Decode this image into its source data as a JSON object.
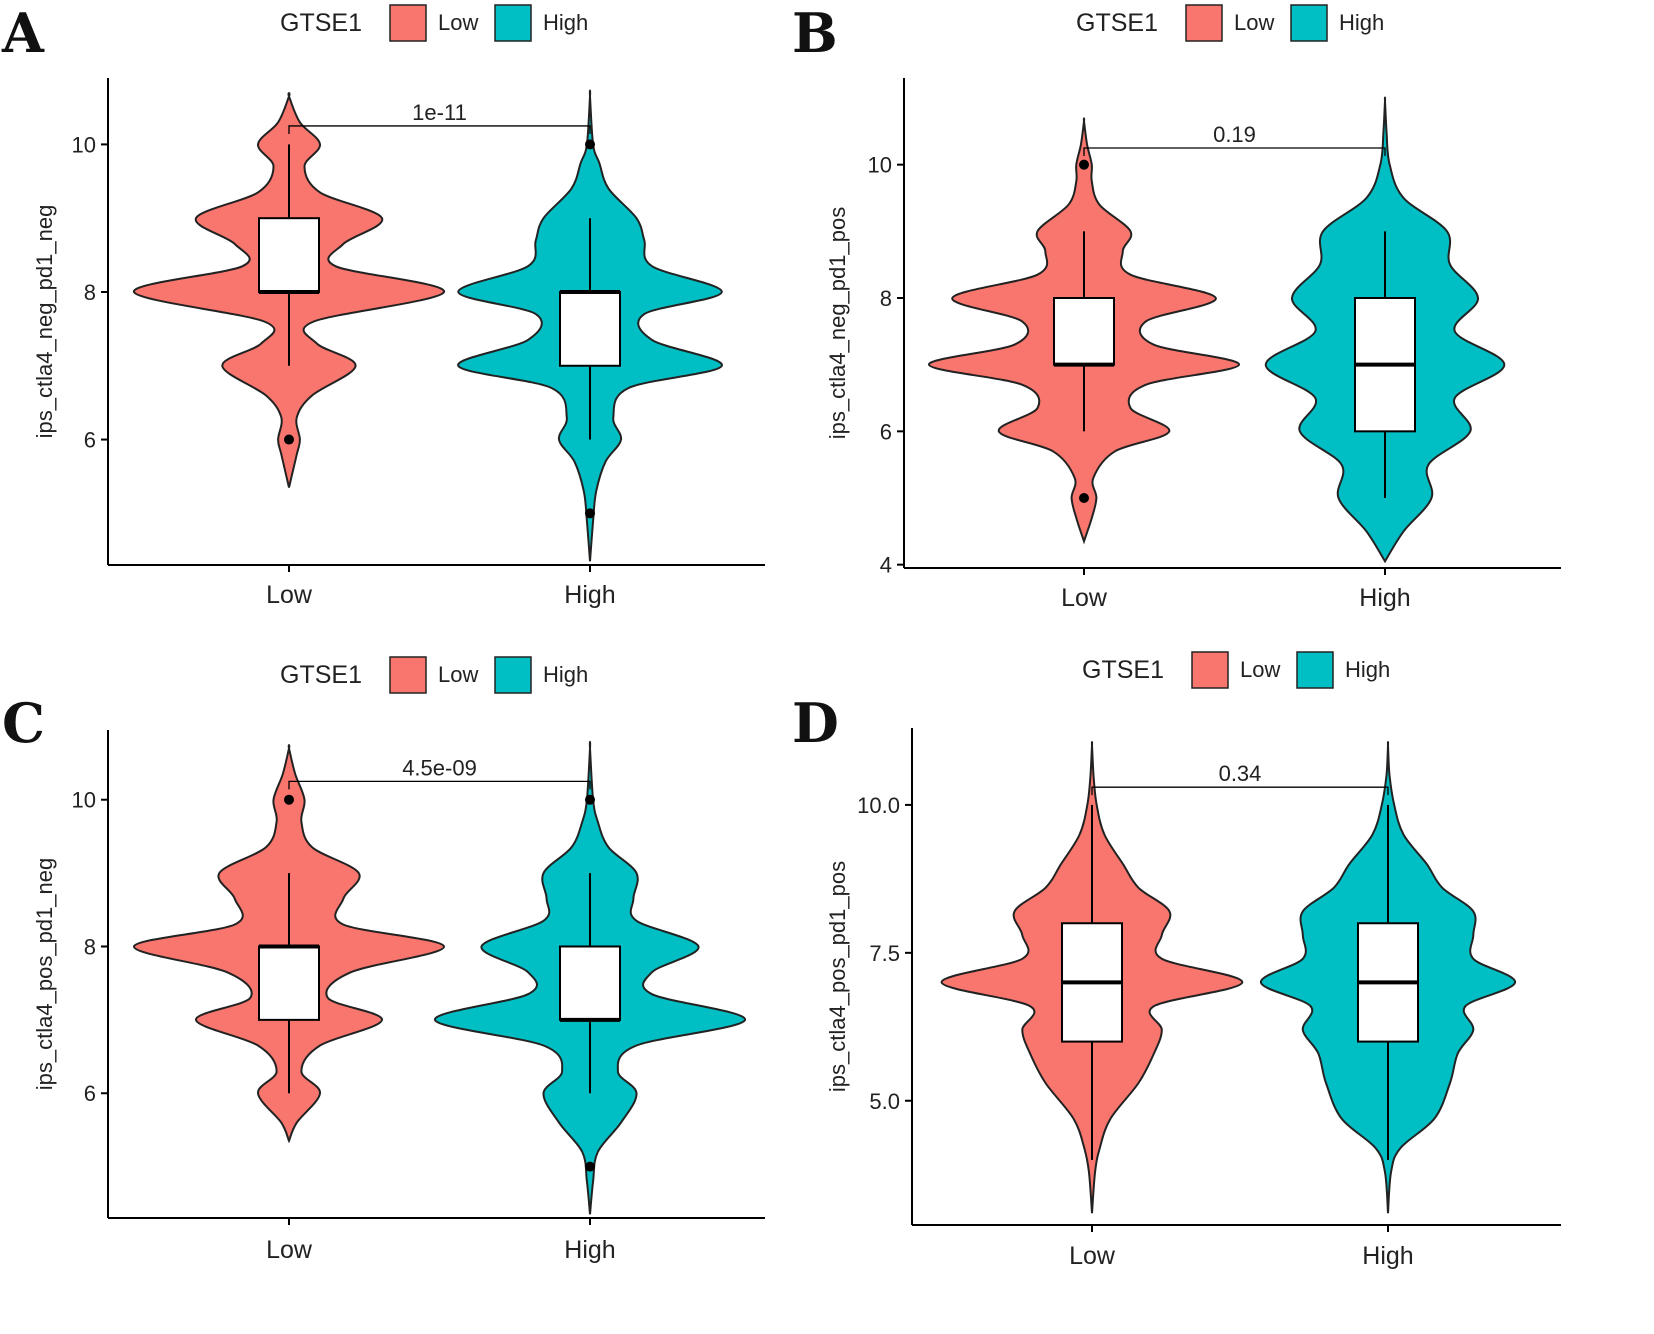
{
  "figure": {
    "legend_title": "GTSE1"
  },
  "colors": {
    "Low": "#F8766D",
    "High": "#00BFC4"
  },
  "chart_data": [
    {
      "panel": "A",
      "type": "violin",
      "legend_title": "GTSE1",
      "legend": [
        "Low",
        "High"
      ],
      "categories": [
        "Low",
        "High"
      ],
      "ylabel": "ips_ctla4_neg_pd1_neg",
      "xlabel": "",
      "ylim": [
        4.3,
        10.9
      ],
      "yticks": [
        6,
        8,
        10
      ],
      "yticklabels": [
        "6",
        "8",
        "10"
      ],
      "pvalue": "1e-11",
      "bracket_y": 10.25,
      "groups": [
        {
          "name": "Low",
          "box": {
            "q1": 8,
            "median": 8,
            "q3": 9,
            "whisker_low": 7,
            "whisker_high": 10
          },
          "outliers": [
            6
          ],
          "range": [
            5.35,
            10.65
          ],
          "density": [
            [
              5.35,
              0
            ],
            [
              5.8,
              0.05
            ],
            [
              6.0,
              0.07
            ],
            [
              6.3,
              0.05
            ],
            [
              6.6,
              0.15
            ],
            [
              7.0,
              0.43
            ],
            [
              7.3,
              0.18
            ],
            [
              7.6,
              0.16
            ],
            [
              8.0,
              1.0
            ],
            [
              8.35,
              0.3
            ],
            [
              8.65,
              0.35
            ],
            [
              9.0,
              0.6
            ],
            [
              9.35,
              0.2
            ],
            [
              9.7,
              0.1
            ],
            [
              10.0,
              0.2
            ],
            [
              10.3,
              0.07
            ],
            [
              10.65,
              0
            ]
          ]
        },
        {
          "name": "High",
          "box": {
            "q1": 7,
            "median": 8,
            "q3": 8,
            "whisker_low": 6,
            "whisker_high": 9
          },
          "outliers": [
            5,
            10
          ],
          "range": [
            4.35,
            10.65
          ],
          "density": [
            [
              4.35,
              0
            ],
            [
              4.9,
              0.02
            ],
            [
              5.3,
              0.04
            ],
            [
              5.7,
              0.1
            ],
            [
              6.0,
              0.2
            ],
            [
              6.3,
              0.15
            ],
            [
              6.7,
              0.25
            ],
            [
              7.0,
              0.85
            ],
            [
              7.35,
              0.4
            ],
            [
              7.7,
              0.35
            ],
            [
              8.0,
              0.85
            ],
            [
              8.35,
              0.4
            ],
            [
              8.7,
              0.35
            ],
            [
              9.0,
              0.3
            ],
            [
              9.4,
              0.12
            ],
            [
              9.75,
              0.06
            ],
            [
              10.0,
              0.02
            ],
            [
              10.65,
              0
            ]
          ]
        }
      ]
    },
    {
      "panel": "B",
      "type": "violin",
      "legend_title": "GTSE1",
      "legend": [
        "Low",
        "High"
      ],
      "categories": [
        "Low",
        "High"
      ],
      "ylabel": "ips_ctla4_neg_pd1_pos",
      "xlabel": "",
      "ylim": [
        3.95,
        11.3
      ],
      "yticks": [
        4,
        6,
        8,
        10
      ],
      "yticklabels": [
        "4",
        "6",
        "8",
        "10"
      ],
      "pvalue": "0.19",
      "bracket_y": 10.25,
      "groups": [
        {
          "name": "Low",
          "box": {
            "q1": 7,
            "median": 7,
            "q3": 8,
            "whisker_low": 6,
            "whisker_high": 9
          },
          "outliers": [
            5,
            10
          ],
          "range": [
            4.35,
            10.65
          ],
          "density": [
            [
              4.35,
              0
            ],
            [
              4.7,
              0.05
            ],
            [
              5.0,
              0.08
            ],
            [
              5.3,
              0.06
            ],
            [
              5.7,
              0.2
            ],
            [
              6.0,
              0.55
            ],
            [
              6.35,
              0.3
            ],
            [
              6.7,
              0.4
            ],
            [
              7.0,
              1.0
            ],
            [
              7.3,
              0.45
            ],
            [
              7.65,
              0.4
            ],
            [
              8.0,
              0.85
            ],
            [
              8.35,
              0.3
            ],
            [
              8.7,
              0.25
            ],
            [
              9.0,
              0.3
            ],
            [
              9.4,
              0.1
            ],
            [
              9.75,
              0.05
            ],
            [
              10.0,
              0.05
            ],
            [
              10.3,
              0.02
            ],
            [
              10.65,
              0
            ]
          ]
        },
        {
          "name": "High",
          "box": {
            "q1": 6,
            "median": 7,
            "q3": 8,
            "whisker_low": 5,
            "whisker_high": 9
          },
          "outliers": [],
          "range": [
            4.05,
            10.95
          ],
          "density": [
            [
              4.05,
              0
            ],
            [
              4.5,
              0.12
            ],
            [
              5.0,
              0.3
            ],
            [
              5.5,
              0.28
            ],
            [
              6.0,
              0.55
            ],
            [
              6.5,
              0.45
            ],
            [
              7.0,
              0.77
            ],
            [
              7.5,
              0.45
            ],
            [
              8.0,
              0.6
            ],
            [
              8.5,
              0.42
            ],
            [
              9.0,
              0.4
            ],
            [
              9.5,
              0.12
            ],
            [
              10.0,
              0.03
            ],
            [
              10.5,
              0.01
            ],
            [
              10.95,
              0
            ]
          ]
        }
      ]
    },
    {
      "panel": "C",
      "type": "violin",
      "legend_title": "GTSE1",
      "legend": [
        "Low",
        "High"
      ],
      "categories": [
        "Low",
        "High"
      ],
      "ylabel": "ips_ctla4_pos_pd1_neg",
      "xlabel": "",
      "ylim": [
        4.3,
        10.95
      ],
      "yticks": [
        6,
        8,
        10
      ],
      "yticklabels": [
        "6",
        "8",
        "10"
      ],
      "pvalue": "4.5e-09",
      "bracket_y": 10.25,
      "groups": [
        {
          "name": "Low",
          "box": {
            "q1": 7,
            "median": 8,
            "q3": 8,
            "whisker_low": 6,
            "whisker_high": 9
          },
          "outliers": [
            10
          ],
          "range": [
            5.35,
            10.7
          ],
          "density": [
            [
              5.35,
              0
            ],
            [
              5.6,
              0.05
            ],
            [
              6.0,
              0.2
            ],
            [
              6.3,
              0.08
            ],
            [
              6.65,
              0.2
            ],
            [
              7.0,
              0.6
            ],
            [
              7.3,
              0.25
            ],
            [
              7.65,
              0.4
            ],
            [
              8.0,
              1.0
            ],
            [
              8.3,
              0.35
            ],
            [
              8.65,
              0.35
            ],
            [
              9.0,
              0.45
            ],
            [
              9.35,
              0.15
            ],
            [
              9.7,
              0.08
            ],
            [
              10.0,
              0.1
            ],
            [
              10.35,
              0.04
            ],
            [
              10.7,
              0
            ]
          ]
        },
        {
          "name": "High",
          "box": {
            "q1": 7,
            "median": 7,
            "q3": 8,
            "whisker_low": 6,
            "whisker_high": 9
          },
          "outliers": [
            5,
            10
          ],
          "range": [
            4.35,
            10.7
          ],
          "density": [
            [
              4.35,
              0
            ],
            [
              4.8,
              0.02
            ],
            [
              5.2,
              0.05
            ],
            [
              5.6,
              0.2
            ],
            [
              6.0,
              0.3
            ],
            [
              6.3,
              0.18
            ],
            [
              6.65,
              0.3
            ],
            [
              7.0,
              1.0
            ],
            [
              7.35,
              0.4
            ],
            [
              7.65,
              0.4
            ],
            [
              8.0,
              0.7
            ],
            [
              8.35,
              0.3
            ],
            [
              8.65,
              0.28
            ],
            [
              9.0,
              0.3
            ],
            [
              9.35,
              0.12
            ],
            [
              9.7,
              0.05
            ],
            [
              10.0,
              0.02
            ],
            [
              10.7,
              0
            ]
          ]
        }
      ]
    },
    {
      "panel": "D",
      "type": "violin",
      "legend_title": "GTSE1",
      "legend": [
        "Low",
        "High"
      ],
      "categories": [
        "Low",
        "High"
      ],
      "ylabel": "ips_ctla4_pos_pd1_pos",
      "xlabel": "",
      "ylim": [
        2.9,
        11.3
      ],
      "yticks": [
        5.0,
        7.5,
        10.0
      ],
      "yticklabels": [
        "5.0",
        "7.5",
        "10.0"
      ],
      "pvalue": "0.34",
      "bracket_y": 10.3,
      "groups": [
        {
          "name": "Low",
          "box": {
            "q1": 6,
            "median": 7,
            "q3": 8,
            "whisker_low": 4,
            "whisker_high": 10
          },
          "outliers": [],
          "range": [
            3.1,
            11.0
          ],
          "density": [
            [
              3.1,
              0
            ],
            [
              3.8,
              0.02
            ],
            [
              4.2,
              0.05
            ],
            [
              4.7,
              0.12
            ],
            [
              5.3,
              0.3
            ],
            [
              5.8,
              0.4
            ],
            [
              6.2,
              0.45
            ],
            [
              6.6,
              0.4
            ],
            [
              7.0,
              0.97
            ],
            [
              7.4,
              0.45
            ],
            [
              7.8,
              0.45
            ],
            [
              8.2,
              0.5
            ],
            [
              8.6,
              0.3
            ],
            [
              9.0,
              0.2
            ],
            [
              9.5,
              0.08
            ],
            [
              10.0,
              0.03
            ],
            [
              10.5,
              0.01
            ],
            [
              11.0,
              0
            ]
          ]
        },
        {
          "name": "High",
          "box": {
            "q1": 6,
            "median": 7,
            "q3": 8,
            "whisker_low": 4,
            "whisker_high": 10
          },
          "outliers": [],
          "range": [
            3.1,
            11.0
          ],
          "density": [
            [
              3.1,
              0
            ],
            [
              3.8,
              0.02
            ],
            [
              4.2,
              0.08
            ],
            [
              4.7,
              0.3
            ],
            [
              5.3,
              0.4
            ],
            [
              5.8,
              0.45
            ],
            [
              6.2,
              0.55
            ],
            [
              6.6,
              0.5
            ],
            [
              7.0,
              0.82
            ],
            [
              7.4,
              0.55
            ],
            [
              7.8,
              0.55
            ],
            [
              8.2,
              0.55
            ],
            [
              8.6,
              0.35
            ],
            [
              9.0,
              0.25
            ],
            [
              9.5,
              0.1
            ],
            [
              10.0,
              0.04
            ],
            [
              10.5,
              0.01
            ],
            [
              11.0,
              0
            ]
          ]
        }
      ]
    }
  ]
}
